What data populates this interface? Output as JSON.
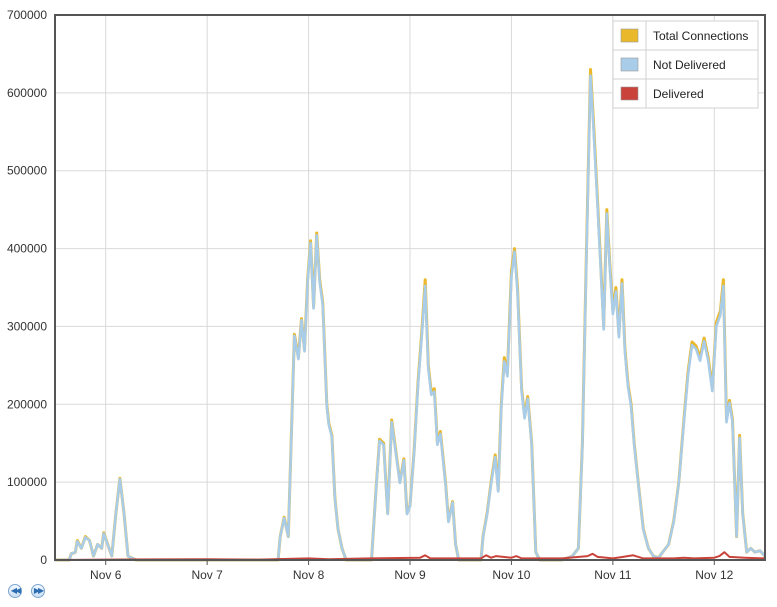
{
  "chart_data": {
    "type": "line",
    "ylim": [
      0,
      700000
    ],
    "yticks": [
      0,
      100000,
      200000,
      300000,
      400000,
      500000,
      600000,
      700000
    ],
    "ytick_labels": [
      "0",
      "100000",
      "200000",
      "300000",
      "400000",
      "500000",
      "600000",
      "700000"
    ],
    "xlim": [
      5.5,
      12.5
    ],
    "xticks": [
      6,
      7,
      8,
      9,
      10,
      11,
      12
    ],
    "xtick_labels": [
      "Nov 6",
      "Nov 7",
      "Nov 8",
      "Nov 9",
      "Nov 10",
      "Nov 11",
      "Nov 12"
    ],
    "x_unit": "day of November",
    "grid": true,
    "legend_position": "top-right",
    "series": [
      {
        "name": "Total Connections",
        "color": "#e9b92b",
        "points": [
          [
            5.5,
            0
          ],
          [
            5.64,
            0
          ],
          [
            5.66,
            8000
          ],
          [
            5.7,
            10000
          ],
          [
            5.72,
            25000
          ],
          [
            5.76,
            15000
          ],
          [
            5.8,
            30000
          ],
          [
            5.84,
            25000
          ],
          [
            5.88,
            5000
          ],
          [
            5.92,
            20000
          ],
          [
            5.96,
            15000
          ],
          [
            5.98,
            35000
          ],
          [
            6.02,
            20000
          ],
          [
            6.06,
            5000
          ],
          [
            6.1,
            60000
          ],
          [
            6.14,
            105000
          ],
          [
            6.18,
            60000
          ],
          [
            6.22,
            5000
          ],
          [
            6.3,
            0
          ],
          [
            6.5,
            0
          ],
          [
            7.0,
            0
          ],
          [
            7.5,
            0
          ],
          [
            7.7,
            0
          ],
          [
            7.72,
            30000
          ],
          [
            7.76,
            55000
          ],
          [
            7.8,
            30000
          ],
          [
            7.84,
            200000
          ],
          [
            7.86,
            290000
          ],
          [
            7.9,
            260000
          ],
          [
            7.93,
            310000
          ],
          [
            7.96,
            270000
          ],
          [
            7.99,
            360000
          ],
          [
            8.02,
            410000
          ],
          [
            8.05,
            325000
          ],
          [
            8.08,
            420000
          ],
          [
            8.11,
            360000
          ],
          [
            8.14,
            330000
          ],
          [
            8.18,
            200000
          ],
          [
            8.2,
            175000
          ],
          [
            8.23,
            160000
          ],
          [
            8.26,
            80000
          ],
          [
            8.29,
            40000
          ],
          [
            8.33,
            15000
          ],
          [
            8.37,
            0
          ],
          [
            8.62,
            0
          ],
          [
            8.67,
            100000
          ],
          [
            8.7,
            155000
          ],
          [
            8.74,
            150000
          ],
          [
            8.78,
            60000
          ],
          [
            8.82,
            180000
          ],
          [
            8.86,
            140000
          ],
          [
            8.9,
            100000
          ],
          [
            8.94,
            130000
          ],
          [
            8.97,
            60000
          ],
          [
            9.0,
            70000
          ],
          [
            9.04,
            140000
          ],
          [
            9.08,
            230000
          ],
          [
            9.12,
            300000
          ],
          [
            9.15,
            360000
          ],
          [
            9.18,
            250000
          ],
          [
            9.21,
            215000
          ],
          [
            9.24,
            220000
          ],
          [
            9.27,
            150000
          ],
          [
            9.3,
            165000
          ],
          [
            9.35,
            100000
          ],
          [
            9.38,
            50000
          ],
          [
            9.42,
            75000
          ],
          [
            9.45,
            20000
          ],
          [
            9.48,
            0
          ],
          [
            9.7,
            0
          ],
          [
            9.72,
            30000
          ],
          [
            9.76,
            60000
          ],
          [
            9.8,
            100000
          ],
          [
            9.84,
            135000
          ],
          [
            9.87,
            90000
          ],
          [
            9.9,
            200000
          ],
          [
            9.93,
            260000
          ],
          [
            9.96,
            240000
          ],
          [
            10.0,
            370000
          ],
          [
            10.03,
            400000
          ],
          [
            10.06,
            350000
          ],
          [
            10.1,
            220000
          ],
          [
            10.13,
            185000
          ],
          [
            10.16,
            210000
          ],
          [
            10.2,
            150000
          ],
          [
            10.24,
            10000
          ],
          [
            10.28,
            0
          ],
          [
            10.5,
            0
          ],
          [
            10.6,
            5000
          ],
          [
            10.66,
            15000
          ],
          [
            10.7,
            150000
          ],
          [
            10.74,
            400000
          ],
          [
            10.78,
            630000
          ],
          [
            10.81,
            560000
          ],
          [
            10.85,
            460000
          ],
          [
            10.88,
            380000
          ],
          [
            10.91,
            300000
          ],
          [
            10.94,
            450000
          ],
          [
            10.97,
            380000
          ],
          [
            11.0,
            320000
          ],
          [
            11.03,
            350000
          ],
          [
            11.06,
            290000
          ],
          [
            11.09,
            360000
          ],
          [
            11.12,
            270000
          ],
          [
            11.15,
            225000
          ],
          [
            11.18,
            200000
          ],
          [
            11.21,
            150000
          ],
          [
            11.25,
            100000
          ],
          [
            11.3,
            40000
          ],
          [
            11.35,
            15000
          ],
          [
            11.4,
            5000
          ],
          [
            11.45,
            3000
          ],
          [
            11.55,
            20000
          ],
          [
            11.6,
            50000
          ],
          [
            11.65,
            100000
          ],
          [
            11.7,
            180000
          ],
          [
            11.74,
            240000
          ],
          [
            11.78,
            280000
          ],
          [
            11.82,
            275000
          ],
          [
            11.86,
            260000
          ],
          [
            11.9,
            285000
          ],
          [
            11.94,
            260000
          ],
          [
            11.98,
            220000
          ],
          [
            12.02,
            305000
          ],
          [
            12.06,
            320000
          ],
          [
            12.09,
            360000
          ],
          [
            12.12,
            180000
          ],
          [
            12.15,
            205000
          ],
          [
            12.18,
            180000
          ],
          [
            12.22,
            30000
          ],
          [
            12.25,
            160000
          ],
          [
            12.28,
            60000
          ],
          [
            12.32,
            10000
          ],
          [
            12.36,
            15000
          ],
          [
            12.4,
            10000
          ],
          [
            12.45,
            12000
          ],
          [
            12.5,
            5000
          ]
        ]
      },
      {
        "name": "Not Delivered",
        "color": "#a9cce8",
        "points": [
          [
            5.5,
            0
          ],
          [
            5.64,
            0
          ],
          [
            5.66,
            8000
          ],
          [
            5.7,
            10000
          ],
          [
            5.72,
            24000
          ],
          [
            5.76,
            15000
          ],
          [
            5.8,
            29000
          ],
          [
            5.84,
            25000
          ],
          [
            5.88,
            5000
          ],
          [
            5.92,
            20000
          ],
          [
            5.96,
            15000
          ],
          [
            5.98,
            34000
          ],
          [
            6.02,
            20000
          ],
          [
            6.06,
            5000
          ],
          [
            6.1,
            60000
          ],
          [
            6.14,
            104000
          ],
          [
            6.18,
            60000
          ],
          [
            6.22,
            5000
          ],
          [
            6.3,
            0
          ],
          [
            6.5,
            0
          ],
          [
            7.0,
            0
          ],
          [
            7.5,
            0
          ],
          [
            7.7,
            0
          ],
          [
            7.72,
            30000
          ],
          [
            7.76,
            54000
          ],
          [
            7.8,
            30000
          ],
          [
            7.84,
            198000
          ],
          [
            7.86,
            288000
          ],
          [
            7.9,
            258000
          ],
          [
            7.93,
            308000
          ],
          [
            7.96,
            268000
          ],
          [
            7.99,
            357000
          ],
          [
            8.02,
            407000
          ],
          [
            8.05,
            323000
          ],
          [
            8.08,
            417000
          ],
          [
            8.11,
            357000
          ],
          [
            8.14,
            327000
          ],
          [
            8.18,
            198000
          ],
          [
            8.2,
            173000
          ],
          [
            8.23,
            158000
          ],
          [
            8.26,
            79000
          ],
          [
            8.29,
            40000
          ],
          [
            8.33,
            15000
          ],
          [
            8.37,
            0
          ],
          [
            8.62,
            0
          ],
          [
            8.67,
            99000
          ],
          [
            8.7,
            153000
          ],
          [
            8.74,
            148000
          ],
          [
            8.78,
            59000
          ],
          [
            8.82,
            177000
          ],
          [
            8.86,
            138000
          ],
          [
            8.9,
            99000
          ],
          [
            8.94,
            128000
          ],
          [
            8.97,
            59000
          ],
          [
            9.0,
            69000
          ],
          [
            9.04,
            138000
          ],
          [
            9.08,
            226000
          ],
          [
            9.12,
            295000
          ],
          [
            9.15,
            352000
          ],
          [
            9.18,
            246000
          ],
          [
            9.21,
            212000
          ],
          [
            9.24,
            216000
          ],
          [
            9.27,
            148000
          ],
          [
            9.3,
            162000
          ],
          [
            9.35,
            98000
          ],
          [
            9.38,
            49000
          ],
          [
            9.42,
            74000
          ],
          [
            9.45,
            20000
          ],
          [
            9.48,
            0
          ],
          [
            9.7,
            0
          ],
          [
            9.72,
            29000
          ],
          [
            9.76,
            59000
          ],
          [
            9.8,
            98000
          ],
          [
            9.84,
            132000
          ],
          [
            9.87,
            88000
          ],
          [
            9.9,
            196000
          ],
          [
            9.93,
            255000
          ],
          [
            9.96,
            236000
          ],
          [
            10.0,
            364000
          ],
          [
            10.03,
            396000
          ],
          [
            10.06,
            345000
          ],
          [
            10.1,
            217000
          ],
          [
            10.13,
            182000
          ],
          [
            10.16,
            207000
          ],
          [
            10.2,
            148000
          ],
          [
            10.24,
            10000
          ],
          [
            10.28,
            0
          ],
          [
            10.5,
            0
          ],
          [
            10.6,
            5000
          ],
          [
            10.66,
            15000
          ],
          [
            10.7,
            147000
          ],
          [
            10.74,
            394000
          ],
          [
            10.78,
            622000
          ],
          [
            10.81,
            553000
          ],
          [
            10.85,
            454000
          ],
          [
            10.88,
            375000
          ],
          [
            10.91,
            296000
          ],
          [
            10.94,
            445000
          ],
          [
            10.97,
            375000
          ],
          [
            11.0,
            316000
          ],
          [
            11.03,
            345000
          ],
          [
            11.06,
            286000
          ],
          [
            11.09,
            355000
          ],
          [
            11.12,
            266000
          ],
          [
            11.15,
            222000
          ],
          [
            11.18,
            197000
          ],
          [
            11.21,
            148000
          ],
          [
            11.25,
            99000
          ],
          [
            11.3,
            39000
          ],
          [
            11.35,
            15000
          ],
          [
            11.4,
            5000
          ],
          [
            11.45,
            3000
          ],
          [
            11.55,
            20000
          ],
          [
            11.6,
            49000
          ],
          [
            11.65,
            99000
          ],
          [
            11.7,
            177000
          ],
          [
            11.74,
            236000
          ],
          [
            11.78,
            276000
          ],
          [
            11.82,
            271000
          ],
          [
            11.86,
            256000
          ],
          [
            11.9,
            281000
          ],
          [
            11.94,
            256000
          ],
          [
            11.98,
            217000
          ],
          [
            12.02,
            300000
          ],
          [
            12.06,
            315000
          ],
          [
            12.09,
            352000
          ],
          [
            12.12,
            177000
          ],
          [
            12.15,
            202000
          ],
          [
            12.18,
            177000
          ],
          [
            12.22,
            30000
          ],
          [
            12.25,
            157000
          ],
          [
            12.28,
            59000
          ],
          [
            12.32,
            10000
          ],
          [
            12.36,
            15000
          ],
          [
            12.4,
            10000
          ],
          [
            12.45,
            12000
          ],
          [
            12.5,
            5000
          ]
        ]
      },
      {
        "name": "Delivered",
        "color": "#c9433a",
        "points": [
          [
            5.5,
            0
          ],
          [
            6.0,
            500
          ],
          [
            6.5,
            800
          ],
          [
            7.0,
            1000
          ],
          [
            7.5,
            500
          ],
          [
            8.0,
            2000
          ],
          [
            8.2,
            1000
          ],
          [
            8.6,
            2000
          ],
          [
            9.1,
            3000
          ],
          [
            9.15,
            6000
          ],
          [
            9.2,
            2000
          ],
          [
            9.7,
            2000
          ],
          [
            9.75,
            6000
          ],
          [
            9.8,
            3000
          ],
          [
            9.85,
            5000
          ],
          [
            10.0,
            3000
          ],
          [
            10.05,
            5000
          ],
          [
            10.1,
            2000
          ],
          [
            10.5,
            2000
          ],
          [
            10.75,
            5000
          ],
          [
            10.8,
            8000
          ],
          [
            10.85,
            4000
          ],
          [
            11.0,
            2000
          ],
          [
            11.1,
            4000
          ],
          [
            11.2,
            6000
          ],
          [
            11.3,
            2000
          ],
          [
            11.6,
            2000
          ],
          [
            11.7,
            3000
          ],
          [
            11.8,
            2000
          ],
          [
            12.0,
            3000
          ],
          [
            12.05,
            5000
          ],
          [
            12.1,
            10000
          ],
          [
            12.15,
            4000
          ],
          [
            12.3,
            3000
          ],
          [
            12.5,
            2000
          ]
        ]
      }
    ]
  }
}
